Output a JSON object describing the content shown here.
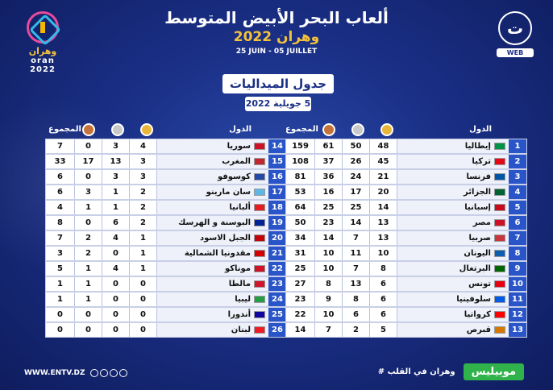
{
  "header": {
    "title": "ألعاب البحر الأبيض المتوسط",
    "subtitle": "وهران 2022",
    "dates": "25 JUIN - 05 JUILLET",
    "logo_left_line1": "وهران",
    "logo_left_line2": "oran 2022",
    "logo_right_web": "WEB",
    "logo_right_glyph": "ت"
  },
  "ribbon": {
    "title": "جدول الميداليات",
    "date": "5 جويلية 2022"
  },
  "table_headers": {
    "countries": "الدول",
    "total": "المجموع"
  },
  "right_rows": [
    {
      "rank": "1",
      "country": "إيطاليا",
      "flag": "#009246",
      "gold": "48",
      "silver": "50",
      "bronze": "61",
      "total": "159"
    },
    {
      "rank": "2",
      "country": "تركيا",
      "flag": "#e30a17",
      "gold": "45",
      "silver": "26",
      "bronze": "37",
      "total": "108"
    },
    {
      "rank": "3",
      "country": "فرنسا",
      "flag": "#0055a4",
      "gold": "21",
      "silver": "24",
      "bronze": "36",
      "total": "81"
    },
    {
      "rank": "4",
      "country": "الجزائر",
      "flag": "#006233",
      "gold": "20",
      "silver": "17",
      "bronze": "16",
      "total": "53"
    },
    {
      "rank": "5",
      "country": "إسبانيا",
      "flag": "#c60b1e",
      "gold": "14",
      "silver": "25",
      "bronze": "25",
      "total": "64"
    },
    {
      "rank": "6",
      "country": "مصر",
      "flag": "#ce1126",
      "gold": "13",
      "silver": "14",
      "bronze": "23",
      "total": "50"
    },
    {
      "rank": "7",
      "country": "صربيا",
      "flag": "#c6363c",
      "gold": "13",
      "silver": "7",
      "bronze": "14",
      "total": "34"
    },
    {
      "rank": "8",
      "country": "اليونان",
      "flag": "#0d5eaf",
      "gold": "10",
      "silver": "11",
      "bronze": "10",
      "total": "31"
    },
    {
      "rank": "9",
      "country": "البرتغال",
      "flag": "#006600",
      "gold": "8",
      "silver": "7",
      "bronze": "10",
      "total": "25"
    },
    {
      "rank": "10",
      "country": "تونس",
      "flag": "#e70013",
      "gold": "6",
      "silver": "13",
      "bronze": "8",
      "total": "27"
    },
    {
      "rank": "11",
      "country": "سلوفينيا",
      "flag": "#005ce5",
      "gold": "6",
      "silver": "8",
      "bronze": "9",
      "total": "23"
    },
    {
      "rank": "12",
      "country": "كرواتيا",
      "flag": "#ff0000",
      "gold": "6",
      "silver": "6",
      "bronze": "10",
      "total": "22"
    },
    {
      "rank": "13",
      "country": "قبرص",
      "flag": "#d57800",
      "gold": "5",
      "silver": "2",
      "bronze": "7",
      "total": "14"
    }
  ],
  "left_rows": [
    {
      "rank": "14",
      "country": "سوريا",
      "flag": "#ce1126",
      "gold": "4",
      "silver": "3",
      "bronze": "0",
      "total": "7"
    },
    {
      "rank": "15",
      "country": "المغرب",
      "flag": "#c1272d",
      "gold": "3",
      "silver": "13",
      "bronze": "17",
      "total": "33"
    },
    {
      "rank": "16",
      "country": "كوسوفو",
      "flag": "#244aa5",
      "gold": "3",
      "silver": "3",
      "bronze": "0",
      "total": "6"
    },
    {
      "rank": "17",
      "country": "سان مارينو",
      "flag": "#5eb6e4",
      "gold": "2",
      "silver": "1",
      "bronze": "3",
      "total": "6"
    },
    {
      "rank": "18",
      "country": "ألبانيا",
      "flag": "#e41e20",
      "gold": "2",
      "silver": "1",
      "bronze": "1",
      "total": "4"
    },
    {
      "rank": "19",
      "country": "البوسنة و الهرسك",
      "flag": "#002395",
      "gold": "2",
      "silver": "6",
      "bronze": "0",
      "total": "8"
    },
    {
      "rank": "20",
      "country": "الجبل الاسود",
      "flag": "#c40308",
      "gold": "1",
      "silver": "4",
      "bronze": "2",
      "total": "7"
    },
    {
      "rank": "21",
      "country": "مقدونيا الشمالية",
      "flag": "#d20000",
      "gold": "1",
      "silver": "0",
      "bronze": "2",
      "total": "3"
    },
    {
      "rank": "22",
      "country": "موناكو",
      "flag": "#ce1126",
      "gold": "1",
      "silver": "4",
      "bronze": "1",
      "total": "5"
    },
    {
      "rank": "23",
      "country": "مالطا",
      "flag": "#cf142b",
      "gold": "0",
      "silver": "0",
      "bronze": "1",
      "total": "1"
    },
    {
      "rank": "24",
      "country": "ليبيا",
      "flag": "#239e46",
      "gold": "0",
      "silver": "0",
      "bronze": "1",
      "total": "1"
    },
    {
      "rank": "25",
      "country": "أندورا",
      "flag": "#10069f",
      "gold": "0",
      "silver": "0",
      "bronze": "0",
      "total": "0"
    },
    {
      "rank": "26",
      "country": "لبنان",
      "flag": "#ed1c24",
      "gold": "0",
      "silver": "0",
      "bronze": "0",
      "total": "0"
    }
  ],
  "footer": {
    "website": "WWW.ENTV.DZ",
    "hashtag": "وهران في القلب #",
    "brand": "موبيليس"
  }
}
